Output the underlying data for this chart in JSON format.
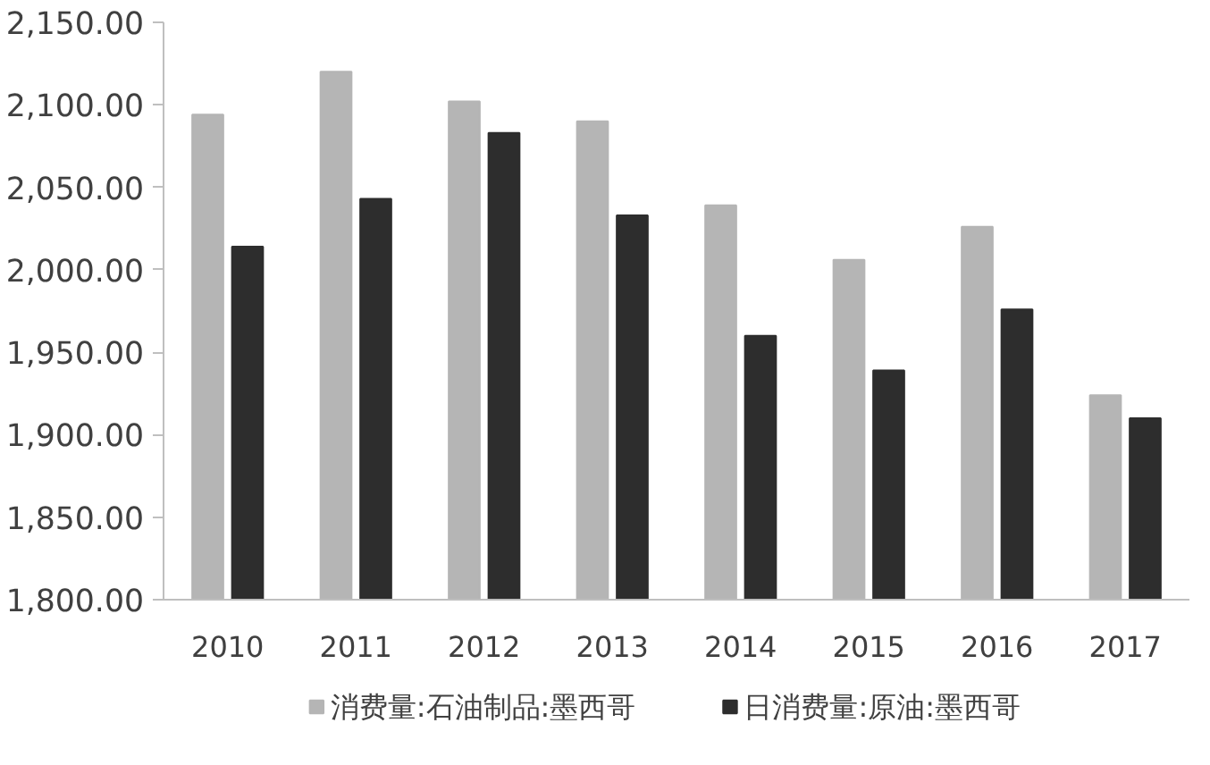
{
  "chart_data": {
    "type": "bar",
    "categories": [
      "2010",
      "2011",
      "2012",
      "2013",
      "2014",
      "2015",
      "2016",
      "2017"
    ],
    "series": [
      {
        "name": "消费量:石油制品:墨西哥",
        "color": "#b5b5b5",
        "values": [
          2094,
          2120,
          2102,
          2090,
          2039,
          2006,
          2026,
          1924
        ]
      },
      {
        "name": "日消费量:原油:墨西哥",
        "color": "#2d2d2d",
        "values": [
          2014,
          2043,
          2083,
          2033,
          1960,
          1939,
          1976,
          1910
        ]
      }
    ],
    "ylim": [
      1800,
      2150
    ],
    "yticks": [
      {
        "value": 1800,
        "label": "1,800.00"
      },
      {
        "value": 1850,
        "label": "1,850.00"
      },
      {
        "value": 1900,
        "label": "1,900.00"
      },
      {
        "value": 1950,
        "label": "1,950.00"
      },
      {
        "value": 2000,
        "label": "2,000.00"
      },
      {
        "value": 2050,
        "label": "2,050.00"
      },
      {
        "value": 2100,
        "label": "2,100.00"
      },
      {
        "value": 2150,
        "label": "2,150.00"
      }
    ],
    "grid": false,
    "legend": "bottom"
  }
}
